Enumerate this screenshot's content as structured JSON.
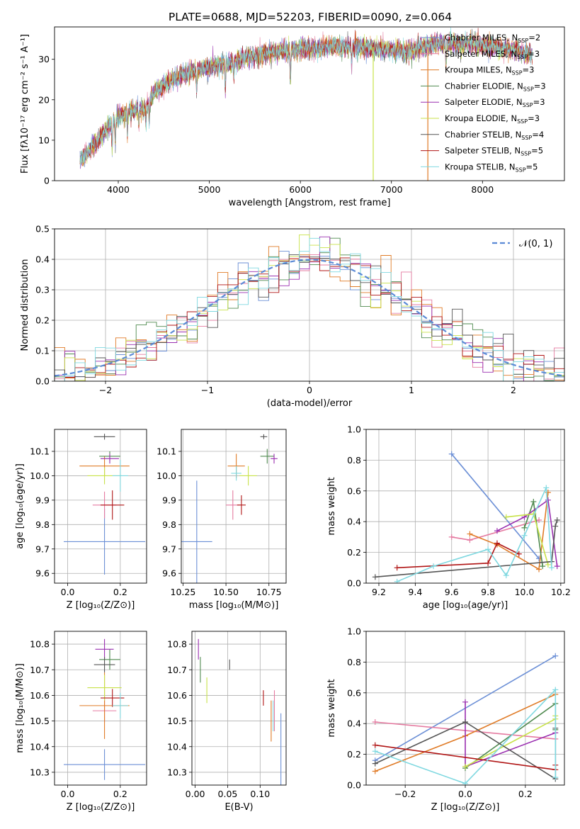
{
  "figure_title": "PLATE=0688, MJD=52203, FIBERID=0090, z=0.064",
  "models": [
    {
      "label": "Chabrier MILES, N",
      "sub": "SSP",
      "suffix": "=2",
      "color": "#6b8fd6"
    },
    {
      "label": "Salpeter MILES, N",
      "sub": "SSP",
      "suffix": "=3",
      "color": "#e57aa0"
    },
    {
      "label": "Kroupa MILES, N",
      "sub": "SSP",
      "suffix": "=3",
      "color": "#e07b27"
    },
    {
      "label": "Chabrier ELODIE, N",
      "sub": "SSP",
      "suffix": "=3",
      "color": "#4f8a4f"
    },
    {
      "label": "Salpeter ELODIE, N",
      "sub": "SSP",
      "suffix": "=3",
      "color": "#9a2fb0"
    },
    {
      "label": "Kroupa ELODIE, N",
      "sub": "SSP",
      "suffix": "=3",
      "color": "#c8e24a"
    },
    {
      "label": "Chabrier STELIB, N",
      "sub": "SSP",
      "suffix": "=4",
      "color": "#555555"
    },
    {
      "label": "Salpeter STELIB, N",
      "sub": "SSP",
      "suffix": "=5",
      "color": "#b01515"
    },
    {
      "label": "Kroupa STELIB, N",
      "sub": "SSP",
      "suffix": "=5",
      "color": "#7fd8e0"
    }
  ],
  "chart_data": [
    {
      "id": "spectrum",
      "type": "line",
      "xlabel": "wavelength [Angstrom, rest frame]",
      "ylabel": "Flux [fλ10⁻¹⁷ erg cm⁻² s⁻¹ A⁻¹]",
      "xlim": [
        3300,
        8900
      ],
      "ylim": [
        0,
        38
      ],
      "xticks": [
        4000,
        5000,
        6000,
        7000,
        8000
      ],
      "yticks": [
        0,
        10,
        20,
        30
      ],
      "x_range": [
        3580,
        8550
      ],
      "anchors": [
        [
          3580,
          5
        ],
        [
          3700,
          8
        ],
        [
          3800,
          11
        ],
        [
          3950,
          15
        ],
        [
          4100,
          17
        ],
        [
          4300,
          18
        ],
        [
          4400,
          22
        ],
        [
          4600,
          25
        ],
        [
          4800,
          27
        ],
        [
          5000,
          28
        ],
        [
          5200,
          29
        ],
        [
          5500,
          31
        ],
        [
          5800,
          32
        ],
        [
          6000,
          32.5
        ],
        [
          6300,
          33
        ],
        [
          6600,
          33
        ],
        [
          6900,
          32.5
        ],
        [
          7200,
          32
        ],
        [
          7500,
          34
        ],
        [
          7800,
          34
        ],
        [
          8100,
          33
        ],
        [
          8400,
          32
        ],
        [
          8550,
          31
        ]
      ],
      "absorption": [
        [
          3933,
          7
        ],
        [
          3968,
          6
        ],
        [
          4101,
          5
        ],
        [
          4226,
          3
        ],
        [
          4304,
          4
        ],
        [
          4340,
          5
        ],
        [
          4861,
          5
        ],
        [
          5175,
          6
        ],
        [
          5270,
          3
        ],
        [
          5890,
          8
        ],
        [
          6563,
          4
        ],
        [
          7600,
          5
        ]
      ],
      "spikes": [
        [
          6800,
          "#c8e24a"
        ],
        [
          7400,
          "#e07b27"
        ]
      ]
    },
    {
      "id": "residuals",
      "type": "histogram",
      "xlabel": "(data-model)/error",
      "ylabel": "Normed distribution",
      "xlim": [
        -2.5,
        2.5
      ],
      "ylim": [
        0,
        0.5
      ],
      "xticks": [
        -2,
        -1,
        0,
        1,
        2
      ],
      "yticks": [
        0,
        0.1,
        0.2,
        0.3,
        0.4,
        0.5
      ],
      "bin_width": 0.1,
      "reference_label": "𝒩(0, 1)",
      "reference_color": "#5b8ad6"
    },
    {
      "id": "age-vs-Z",
      "type": "scatter",
      "xlabel": "Z [log₁₀(Z/Z⊙)]",
      "ylabel": "age  [log₁₀(age/yr)]",
      "xlim": [
        -0.05,
        0.3
      ],
      "ylim": [
        9.56,
        10.19
      ],
      "xticks": [
        0.0,
        0.2
      ],
      "yticks": [
        9.6,
        9.7,
        9.8,
        9.9,
        10.0,
        10.1
      ],
      "points": [
        {
          "x": 0.14,
          "y": 9.73,
          "xerr": 0.155,
          "yerr": 0.135
        },
        {
          "x": 0.14,
          "y": 9.88,
          "xerr": 0.045,
          "yerr": 0.055
        },
        {
          "x": 0.14,
          "y": 10.04,
          "xerr": 0.095,
          "yerr": 0.04
        },
        {
          "x": 0.16,
          "y": 10.08,
          "xerr": 0.04,
          "yerr": 0.02
        },
        {
          "x": 0.16,
          "y": 10.07,
          "xerr": 0.035,
          "yerr": 0.02
        },
        {
          "x": 0.14,
          "y": 10.0,
          "xerr": 0.065,
          "yerr": 0.035
        },
        {
          "x": 0.14,
          "y": 10.16,
          "xerr": 0.04,
          "yerr": 0.012
        },
        {
          "x": 0.17,
          "y": 9.88,
          "xerr": 0.045,
          "yerr": 0.06
        },
        {
          "x": 0.2,
          "y": 10.0,
          "xerr": 0.03,
          "yerr": 0.065
        }
      ]
    },
    {
      "id": "age-vs-mass",
      "type": "scatter",
      "xlabel": "mass [log₁₀(M/M⊙)]",
      "ylabel": "",
      "xlim": [
        10.24,
        10.85
      ],
      "ylim": [
        9.56,
        10.19
      ],
      "xticks": [
        10.25,
        10.5,
        10.75
      ],
      "yticks": [
        9.6,
        9.7,
        9.8,
        9.9,
        10.0,
        10.1
      ],
      "points": [
        {
          "x": 10.33,
          "y": 9.73,
          "xerr": 0.09,
          "yerr": 0.25
        },
        {
          "x": 10.54,
          "y": 9.88,
          "xerr": 0.04,
          "yerr": 0.06
        },
        {
          "x": 10.56,
          "y": 10.04,
          "xerr": 0.05,
          "yerr": 0.05
        },
        {
          "x": 10.74,
          "y": 10.08,
          "xerr": 0.04,
          "yerr": 0.03
        },
        {
          "x": 10.78,
          "y": 10.07,
          "xerr": 0.02,
          "yerr": 0.02
        },
        {
          "x": 10.63,
          "y": 10.0,
          "xerr": 0.05,
          "yerr": 0.04
        },
        {
          "x": 10.72,
          "y": 10.16,
          "xerr": 0.02,
          "yerr": 0.01
        },
        {
          "x": 10.59,
          "y": 9.88,
          "xerr": 0.025,
          "yerr": 0.04
        },
        {
          "x": 10.56,
          "y": 10.01,
          "xerr": 0.03,
          "yerr": 0.03
        }
      ]
    },
    {
      "id": "weight-vs-age",
      "type": "line",
      "xlabel": "age  [log₁₀(age/yr)]",
      "ylabel": "mass weight",
      "xlim": [
        9.13,
        10.22
      ],
      "ylim": [
        0,
        1.0
      ],
      "xticks": [
        9.2,
        9.4,
        9.6,
        9.8,
        10.0,
        10.2
      ],
      "yticks": [
        0.0,
        0.2,
        0.4,
        0.6,
        0.8,
        1.0
      ],
      "series": [
        {
          "x": [
            9.6,
            10.08
          ],
          "y": [
            0.84,
            0.16
          ]
        },
        {
          "x": [
            9.6,
            9.7,
            10.08
          ],
          "y": [
            0.3,
            0.28,
            0.41
          ]
        },
        {
          "x": [
            9.7,
            9.85,
            10.08,
            10.13
          ],
          "y": [
            0.32,
            0.25,
            0.09,
            0.59
          ]
        },
        {
          "x": [
            10.0,
            10.05,
            10.1
          ],
          "y": [
            0.36,
            0.53,
            0.11
          ]
        },
        {
          "x": [
            9.85,
            10.0,
            10.13,
            10.18
          ],
          "y": [
            0.34,
            0.43,
            0.54,
            0.11
          ]
        },
        {
          "x": [
            9.9,
            10.05,
            10.13
          ],
          "y": [
            0.43,
            0.45,
            0.12
          ]
        },
        {
          "x": [
            9.18,
            10.15,
            10.17,
            10.18
          ],
          "y": [
            0.04,
            0.14,
            0.37,
            0.41
          ]
        },
        {
          "x": [
            9.3,
            9.8,
            9.85,
            9.97
          ],
          "y": [
            0.1,
            0.13,
            0.26,
            0.19
          ]
        },
        {
          "x": [
            9.3,
            9.5,
            9.8,
            9.9,
            10.0,
            10.12,
            10.15
          ],
          "y": [
            0.01,
            0.11,
            0.22,
            0.05,
            0.31,
            0.62,
            0.1
          ]
        }
      ]
    },
    {
      "id": "mass-vs-Z",
      "type": "scatter",
      "xlabel": "Z [log₁₀(Z/Z⊙)]",
      "ylabel": "mass [log₁₀(M/M⊙)]",
      "xlim": [
        -0.05,
        0.3
      ],
      "ylim": [
        10.25,
        10.85
      ],
      "xticks": [
        0.0,
        0.2
      ],
      "yticks": [
        10.3,
        10.4,
        10.5,
        10.6,
        10.7,
        10.8
      ],
      "points": [
        {
          "x": 0.14,
          "y": 10.33,
          "xerr": 0.155,
          "yerr": 0.06
        },
        {
          "x": 0.14,
          "y": 10.54,
          "xerr": 0.045,
          "yerr": 0.045
        },
        {
          "x": 0.14,
          "y": 10.56,
          "xerr": 0.095,
          "yerr": 0.13
        },
        {
          "x": 0.16,
          "y": 10.74,
          "xerr": 0.04,
          "yerr": 0.04
        },
        {
          "x": 0.14,
          "y": 10.78,
          "xerr": 0.035,
          "yerr": 0.04
        },
        {
          "x": 0.14,
          "y": 10.63,
          "xerr": 0.065,
          "yerr": 0.05
        },
        {
          "x": 0.14,
          "y": 10.72,
          "xerr": 0.04,
          "yerr": 0.03
        },
        {
          "x": 0.17,
          "y": 10.59,
          "xerr": 0.045,
          "yerr": 0.035
        },
        {
          "x": 0.2,
          "y": 10.56,
          "xerr": 0.03,
          "yerr": 0.05
        }
      ]
    },
    {
      "id": "mass-vs-EBV",
      "type": "scatter",
      "xlabel": "E(B-V)",
      "ylabel": "",
      "xlim": [
        -0.005,
        0.14
      ],
      "ylim": [
        10.25,
        10.85
      ],
      "xticks": [
        0.0,
        0.05,
        0.1
      ],
      "yticks": [
        10.3,
        10.4,
        10.5,
        10.6,
        10.7,
        10.8
      ],
      "points": [
        {
          "x": 0.132,
          "y": 10.33,
          "xerr": 0,
          "yerr": 0.2
        },
        {
          "x": 0.122,
          "y": 10.54,
          "xerr": 0,
          "yerr": 0.08
        },
        {
          "x": 0.117,
          "y": 10.5,
          "xerr": 0,
          "yerr": 0.08
        },
        {
          "x": 0.008,
          "y": 10.7,
          "xerr": 0,
          "yerr": 0.05
        },
        {
          "x": 0.005,
          "y": 10.78,
          "xerr": 0,
          "yerr": 0.04
        },
        {
          "x": 0.018,
          "y": 10.62,
          "xerr": 0,
          "yerr": 0.05
        },
        {
          "x": 0.053,
          "y": 10.72,
          "xerr": 0,
          "yerr": 0.02
        },
        {
          "x": 0.105,
          "y": 10.59,
          "xerr": 0,
          "yerr": 0.03
        },
        {
          "x": 0.12,
          "y": 10.52,
          "xerr": 0,
          "yerr": 0.06
        }
      ]
    },
    {
      "id": "weight-vs-Z",
      "type": "line",
      "xlabel": "Z [log₁₀(Z/Z⊙)]",
      "ylabel": "mass weight",
      "xlim": [
        -0.33,
        0.33
      ],
      "ylim": [
        0,
        1.0
      ],
      "xticks": [
        -0.2,
        0.0,
        0.2
      ],
      "yticks": [
        0.0,
        0.2,
        0.4,
        0.6,
        0.8,
        1.0
      ],
      "series": [
        {
          "x": [
            -0.3,
            0.3
          ],
          "y": [
            0.16,
            0.84
          ]
        },
        {
          "x": [
            -0.3,
            0.3
          ],
          "y": [
            0.41,
            0.3
          ]
        },
        {
          "x": [
            -0.3,
            0.0,
            0.3
          ],
          "y": [
            0.09,
            0.32,
            0.59
          ]
        },
        {
          "x": [
            0.0,
            0.3,
            0.3
          ],
          "y": [
            0.11,
            0.53,
            0.36
          ]
        },
        {
          "x": [
            0.0,
            0.0,
            0.3
          ],
          "y": [
            0.54,
            0.12,
            0.34
          ]
        },
        {
          "x": [
            0.0,
            0.3,
            0.3
          ],
          "y": [
            0.12,
            0.43,
            0.45
          ]
        },
        {
          "x": [
            -0.3,
            0.0,
            0.3,
            0.3
          ],
          "y": [
            0.14,
            0.41,
            0.04,
            0.37
          ]
        },
        {
          "x": [
            -0.3,
            0.3,
            0.3
          ],
          "y": [
            0.26,
            0.1,
            0.13
          ]
        },
        {
          "x": [
            -0.3,
            0.0,
            0.3,
            0.3
          ],
          "y": [
            0.22,
            0.01,
            0.62,
            0.05
          ]
        }
      ]
    }
  ]
}
